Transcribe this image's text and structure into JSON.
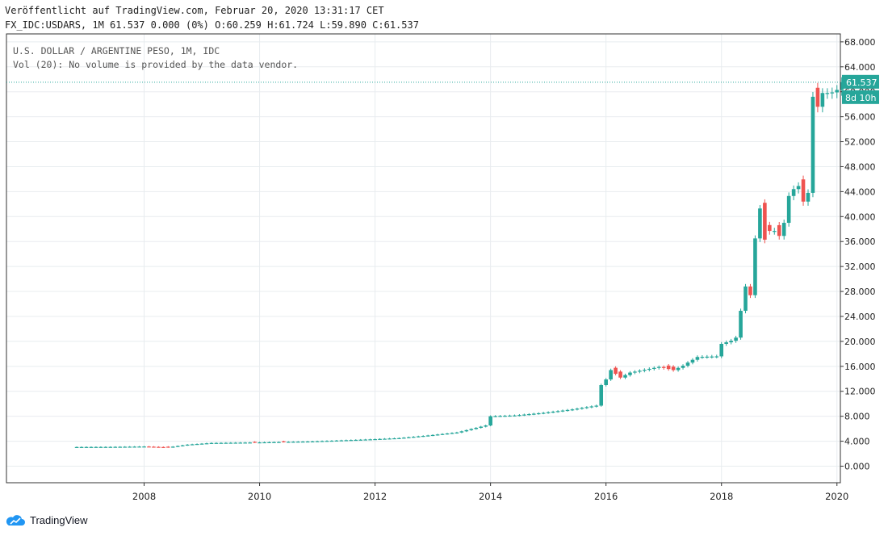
{
  "header": {
    "published": "Veröffentlicht auf TradingView.com, Februar 20, 2020 13:31:17 CET",
    "ohlc": "FX_IDC:USDARS, 1M 61.537 0.000 (0%) O:60.259 H:61.724 L:59.890 C:61.537"
  },
  "legend": {
    "symbol": "U.S. DOLLAR / ARGENTINE PESO, 1M, IDC",
    "volume": "Vol (20): No volume is provided by the data vendor."
  },
  "price_tag": "61.537",
  "countdown_tag": "8d 10h",
  "brand": "TradingView",
  "colors": {
    "up": "#26a69a",
    "down": "#ef5350",
    "grid": "#e8ecef",
    "axis": "#333333"
  },
  "chart_data": {
    "type": "candlestick",
    "timeframe": "1M",
    "ylim": [
      -2,
      69
    ],
    "y_ticks": [
      "68.000",
      "64.000",
      "60.000",
      "56.000",
      "52.000",
      "48.000",
      "44.000",
      "40.000",
      "36.000",
      "32.000",
      "28.000",
      "24.000",
      "20.000",
      "16.000",
      "12.000",
      "8.000",
      "4.000",
      "0.000"
    ],
    "x_ticks": [
      "2008",
      "2010",
      "2012",
      "2014",
      "2016",
      "2018",
      "2020"
    ],
    "last_close": 61.537,
    "waypoints": [
      [
        "2006-11",
        3.07
      ],
      [
        "2007-06",
        3.09
      ],
      [
        "2008-01",
        3.15
      ],
      [
        "2008-06",
        3.02
      ],
      [
        "2008-10",
        3.45
      ],
      [
        "2009-03",
        3.72
      ],
      [
        "2009-12",
        3.8
      ],
      [
        "2010-12",
        3.97
      ],
      [
        "2011-12",
        4.3
      ],
      [
        "2012-06",
        4.5
      ],
      [
        "2012-12",
        4.92
      ],
      [
        "2013-06",
        5.4
      ],
      [
        "2013-12",
        6.52
      ],
      [
        "2014-01",
        8.0
      ],
      [
        "2014-06",
        8.13
      ],
      [
        "2014-12",
        8.55
      ],
      [
        "2015-06",
        9.1
      ],
      [
        "2015-11",
        9.7
      ],
      [
        "2015-12",
        13.0
      ],
      [
        "2016-01",
        13.9
      ],
      [
        "2016-02",
        15.4
      ],
      [
        "2016-04",
        14.2
      ],
      [
        "2016-06",
        15.0
      ],
      [
        "2016-12",
        15.9
      ],
      [
        "2017-03",
        15.4
      ],
      [
        "2017-05",
        16.1
      ],
      [
        "2017-06",
        16.6
      ],
      [
        "2017-08",
        17.5
      ],
      [
        "2017-12",
        17.6
      ],
      [
        "2018-01",
        19.6
      ],
      [
        "2018-03",
        20.1
      ],
      [
        "2018-04",
        20.6
      ],
      [
        "2018-05",
        24.9
      ],
      [
        "2018-06",
        28.8
      ],
      [
        "2018-07",
        27.4
      ],
      [
        "2018-08",
        36.5
      ],
      [
        "2018-09",
        41.3
      ],
      [
        "2018-10",
        36.3
      ],
      [
        "2018-11",
        37.7
      ],
      [
        "2018-12",
        37.7
      ],
      [
        "2019-01",
        36.9
      ],
      [
        "2019-02",
        39.0
      ],
      [
        "2019-03",
        43.3
      ],
      [
        "2019-04",
        44.4
      ],
      [
        "2019-05",
        44.9
      ],
      [
        "2019-06",
        42.4
      ],
      [
        "2019-07",
        43.8
      ],
      [
        "2019-08",
        59.2
      ],
      [
        "2019-09",
        57.6
      ],
      [
        "2019-10",
        59.8
      ],
      [
        "2019-11",
        59.8
      ],
      [
        "2019-12",
        59.9
      ],
      [
        "2020-01",
        60.3
      ],
      [
        "2020-02",
        61.537
      ]
    ],
    "bearish_months": [
      "2008-06",
      "2009-12",
      "2010-06",
      "2016-03",
      "2016-04",
      "2017-02",
      "2017-03",
      "2018-10",
      "2018-11",
      "2019-01",
      "2019-06",
      "2019-09"
    ]
  }
}
